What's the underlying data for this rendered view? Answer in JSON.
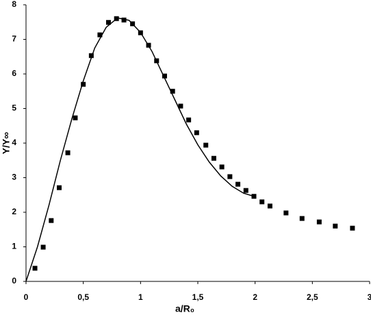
{
  "chart_data": {
    "type": "scatter",
    "x_label": "a/R₀",
    "y_label": "Y/Y∞",
    "xlim": [
      0,
      3
    ],
    "ylim": [
      0,
      8
    ],
    "xticks": [
      0,
      {
        "value": 0.5,
        "label": "0,5"
      },
      1,
      {
        "value": 1.5,
        "label": "1,5"
      },
      2,
      {
        "value": 2.5,
        "label": "2,5"
      },
      3
    ],
    "yticks": [
      0,
      1,
      2,
      3,
      4,
      5,
      6,
      7,
      8
    ],
    "series": [
      {
        "mode": "markers",
        "color": "#000000",
        "x": [
          0.078,
          0.15,
          0.22,
          0.29,
          0.365,
          0.43,
          0.5,
          0.57,
          0.645,
          0.72,
          0.79,
          0.855,
          0.93,
          1.0,
          1.07,
          1.14,
          1.21,
          1.28,
          1.35,
          1.42,
          1.49,
          1.57,
          1.64,
          1.71,
          1.78,
          1.85,
          1.92,
          1.99,
          2.06,
          2.13,
          2.27,
          2.41,
          2.56,
          2.7,
          2.85
        ],
        "values": [
          0.38,
          0.99,
          1.76,
          2.71,
          3.72,
          4.73,
          5.7,
          6.53,
          7.13,
          7.49,
          7.6,
          7.56,
          7.45,
          7.19,
          6.83,
          6.38,
          5.94,
          5.5,
          5.07,
          4.67,
          4.3,
          3.94,
          3.56,
          3.31,
          3.03,
          2.81,
          2.63,
          2.46,
          2.3,
          2.18,
          1.98,
          1.82,
          1.72,
          1.6,
          1.54
        ]
      },
      {
        "mode": "line",
        "color": "#000000",
        "x": [
          0,
          0.1,
          0.2,
          0.3,
          0.4,
          0.5,
          0.6,
          0.7,
          0.8,
          0.9,
          1.0,
          1.1,
          1.2,
          1.3,
          1.4,
          1.5,
          1.6,
          1.7,
          1.8,
          1.9,
          2.0
        ],
        "values": [
          0,
          1.0,
          2.2,
          3.5,
          4.7,
          5.8,
          6.75,
          7.35,
          7.62,
          7.55,
          7.2,
          6.65,
          5.95,
          5.25,
          4.55,
          3.95,
          3.45,
          3.05,
          2.75,
          2.55,
          2.45
        ]
      }
    ]
  }
}
